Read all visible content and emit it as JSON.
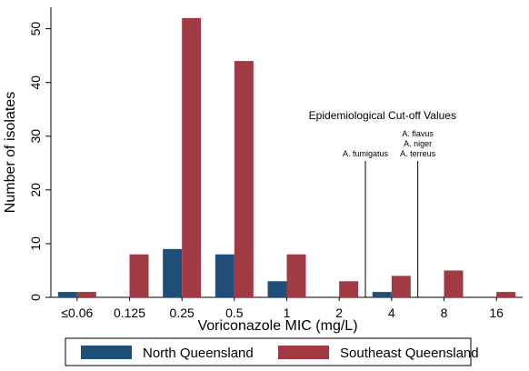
{
  "chart_data": {
    "type": "bar",
    "title": "",
    "xlabel": "Voriconazole MIC (mg/L)",
    "ylabel": "Number of isolates",
    "ylim": [
      0,
      54
    ],
    "yticks": [
      0,
      10,
      20,
      30,
      40,
      50
    ],
    "grid": false,
    "legend_position": "bottom",
    "categories": [
      "≤0.06",
      "0.125",
      "0.25",
      "0.5",
      "1",
      "2",
      "4",
      "8",
      "16"
    ],
    "series": [
      {
        "name": "North Queensland",
        "color": "#1f4e79",
        "values": [
          1,
          0,
          9,
          8,
          3,
          0,
          1,
          0,
          0
        ]
      },
      {
        "name": "Southeast Queensland",
        "color": "#a23a44",
        "values": [
          1,
          8,
          52,
          44,
          8,
          3,
          4,
          5,
          1
        ]
      }
    ],
    "annotations": {
      "heading": "Epidemiological Cut-off Values",
      "cutoffs": [
        {
          "position": 5.5,
          "labels": [
            "A. fumigatus"
          ]
        },
        {
          "position": 6.5,
          "labels": [
            "A. flavus",
            "A. niger",
            "A. terreus"
          ]
        }
      ]
    }
  }
}
